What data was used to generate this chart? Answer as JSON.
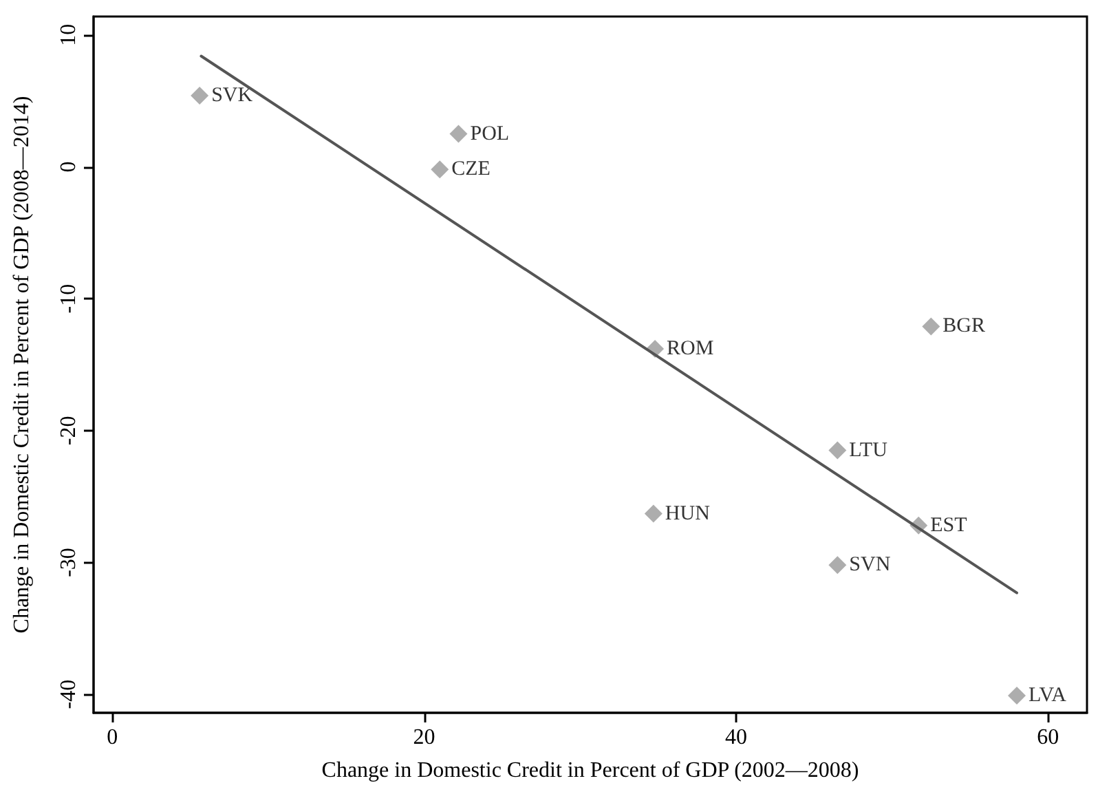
{
  "chart_data": {
    "type": "scatter",
    "xlabel": "Change in Domestic Credit in Percent of GDP (2002—2008)",
    "ylabel": "Change in Domestic Credit in Percent of GDP (2008—2014)",
    "xlim": [
      -1.2,
      62.5
    ],
    "xticks": [
      0,
      20,
      40,
      60
    ],
    "ylim": [
      -41.4,
      11.4
    ],
    "yticks": [
      -40,
      -30,
      -20,
      -10,
      0,
      10
    ],
    "grid": false,
    "marker": "diamond",
    "series": [
      {
        "color": "#999999",
        "x": [
          5.6,
          22.2,
          21.0,
          34.8,
          52.5,
          46.5,
          34.7,
          51.7,
          46.5,
          58.0
        ],
        "values": [
          5.4,
          2.5,
          -0.2,
          -13.8,
          -12.1,
          -21.5,
          -26.3,
          -27.2,
          -30.2,
          -40.1
        ],
        "value_labels": [
          "SVK",
          "POL",
          "CZE",
          "ROM",
          "BGR",
          "LTU",
          "HUN",
          "EST",
          "SVN",
          "LVA"
        ]
      },
      {
        "type": "line",
        "color": "#555555",
        "marker": "none",
        "line_style": "solid",
        "x": [
          5.7,
          58.0
        ],
        "values": [
          8.4,
          -32.3
        ]
      }
    ]
  }
}
